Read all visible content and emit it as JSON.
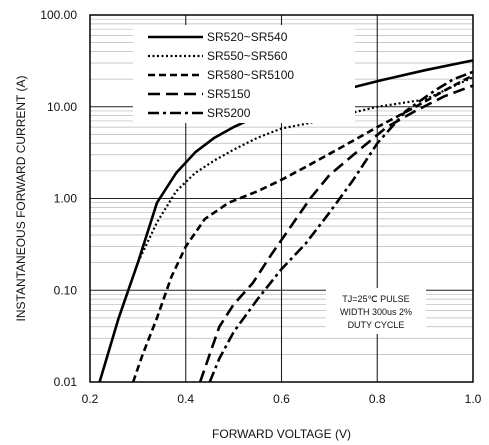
{
  "chart_data": {
    "type": "line",
    "x_label": "FORWARD VOLTAGE (V)",
    "y_label": "INSTANTANEOUS FORWARD CURRENT (A)",
    "y_scale": "log",
    "xlim": [
      0.2,
      1.0
    ],
    "ylim": [
      0.01,
      100
    ],
    "x_ticks": [
      "0.2",
      "0.4",
      "0.6",
      "0.8",
      "1.0"
    ],
    "y_ticks": [
      "0.01",
      "0.10",
      "1.00",
      "10.00",
      "100.00"
    ],
    "grid": true,
    "legend_position": "top-left",
    "annotation_lines": [
      "TJ=25℃ PULSE",
      "WIDTH 300us 2%",
      "DUTY CYCLE"
    ],
    "series": [
      {
        "name": "SR520~SR540",
        "dash": "solid",
        "points": [
          [
            0.22,
            0.01
          ],
          [
            0.26,
            0.05
          ],
          [
            0.3,
            0.2
          ],
          [
            0.34,
            0.9
          ],
          [
            0.38,
            1.9
          ],
          [
            0.42,
            3.2
          ],
          [
            0.46,
            4.6
          ],
          [
            0.5,
            6.0
          ],
          [
            0.55,
            7.9
          ],
          [
            0.6,
            10
          ],
          [
            0.7,
            14
          ],
          [
            0.8,
            19
          ],
          [
            0.9,
            25
          ],
          [
            1.0,
            32
          ]
        ]
      },
      {
        "name": "SR550~SR560",
        "dash": "dotted",
        "points": [
          [
            0.22,
            0.01
          ],
          [
            0.26,
            0.05
          ],
          [
            0.3,
            0.2
          ],
          [
            0.34,
            0.55
          ],
          [
            0.38,
            1.2
          ],
          [
            0.42,
            1.9
          ],
          [
            0.46,
            2.6
          ],
          [
            0.5,
            3.4
          ],
          [
            0.55,
            4.6
          ],
          [
            0.6,
            5.8
          ],
          [
            0.65,
            6.5
          ],
          [
            0.8,
            10
          ],
          [
            0.9,
            12
          ],
          [
            1.0,
            21
          ]
        ]
      },
      {
        "name": "SR580~SR5100",
        "dash": "dashed",
        "points": [
          [
            0.29,
            0.01
          ],
          [
            0.31,
            0.02
          ],
          [
            0.34,
            0.05
          ],
          [
            0.37,
            0.14
          ],
          [
            0.4,
            0.3
          ],
          [
            0.44,
            0.6
          ],
          [
            0.49,
            0.9
          ],
          [
            0.55,
            1.2
          ],
          [
            0.6,
            1.6
          ],
          [
            0.65,
            2.2
          ],
          [
            0.72,
            3.5
          ],
          [
            0.8,
            6.0
          ],
          [
            0.88,
            10
          ],
          [
            0.95,
            16
          ],
          [
            1.0,
            22
          ]
        ]
      },
      {
        "name": "SR5150",
        "dash": "long-dash",
        "points": [
          [
            0.43,
            0.01
          ],
          [
            0.45,
            0.02
          ],
          [
            0.47,
            0.04
          ],
          [
            0.5,
            0.07
          ],
          [
            0.54,
            0.12
          ],
          [
            0.58,
            0.25
          ],
          [
            0.62,
            0.5
          ],
          [
            0.66,
            1.0
          ],
          [
            0.7,
            1.8
          ],
          [
            0.76,
            3.3
          ],
          [
            0.82,
            6.0
          ],
          [
            0.88,
            9.0
          ],
          [
            0.94,
            13
          ],
          [
            1.0,
            17
          ]
        ]
      },
      {
        "name": "SR5200",
        "dash": "dash-dot",
        "points": [
          [
            0.45,
            0.01
          ],
          [
            0.47,
            0.018
          ],
          [
            0.5,
            0.035
          ],
          [
            0.55,
            0.08
          ],
          [
            0.6,
            0.17
          ],
          [
            0.65,
            0.32
          ],
          [
            0.7,
            0.7
          ],
          [
            0.75,
            1.6
          ],
          [
            0.8,
            4.0
          ],
          [
            0.86,
            9.0
          ],
          [
            0.92,
            15
          ],
          [
            0.96,
            20
          ],
          [
            1.0,
            24
          ]
        ]
      }
    ]
  }
}
